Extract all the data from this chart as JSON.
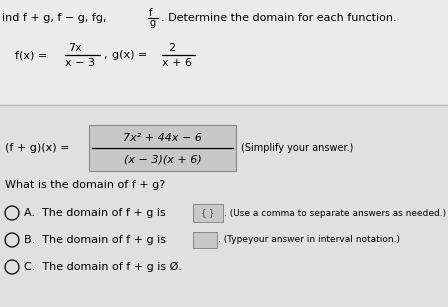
{
  "bg_color": "#e8e8e8",
  "white_bg": "#ffffff",
  "divider_color": "#bbbbbb",
  "result_box_color": "#c8c8c8",
  "answer_box_a_color": "#c8c8c8",
  "answer_box_b_color": "#c8c8c8",
  "text_color": "#000000",
  "title_line": "ind f + g, f − g, fg,",
  "title_cont": ". Determine the domain for each function.",
  "fx_label": "f(x) =",
  "fx_num": "7x",
  "fx_den": "x − 3",
  "comma": ",",
  "gx_label": "g(x) =",
  "gx_num": "2",
  "gx_den": "x + 6",
  "result_label": "(f + g)(x) =",
  "result_num": "7x² + 44x − 6",
  "result_den": "(x − 3)(x + 6)",
  "simplify": "(Simplify your answer.)",
  "domain_q": "What is the domain of f + g?",
  "optA": "A.  The domain of f + g is",
  "optA_extra": ". (Use a comma to separate answers as needed.)",
  "optB": "B.  The domain of f + g is",
  "optB_extra": ". (Typeyour answer in interval notation.)",
  "optC": "C.  The domain of f + g is Ø.",
  "font_main": 8.0,
  "font_small": 7.0
}
